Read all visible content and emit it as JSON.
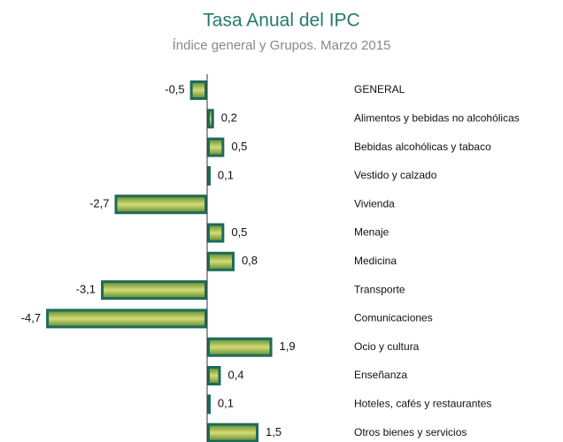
{
  "chart_data": {
    "type": "bar",
    "orientation": "horizontal",
    "title": "Tasa Anual del IPC",
    "subtitle": "Índice general y Grupos.  Marzo  2015",
    "categories": [
      "GENERAL",
      "Alimentos y bebidas no alcohólicas",
      "Bebidas alcohólicas y tabaco",
      "Vestido y calzado",
      "Vivienda",
      "Menaje",
      "Medicina",
      "Transporte",
      "Comunicaciones",
      "Ocio y cultura",
      "Enseñanza",
      "Hoteles, cafés y restaurantes",
      "Otros bienes y servicios"
    ],
    "values": [
      -0.5,
      0.2,
      0.5,
      0.1,
      -2.7,
      0.5,
      0.8,
      -3.1,
      -4.7,
      1.9,
      0.4,
      0.1,
      1.5
    ],
    "value_labels": [
      "-0,5",
      "0,2",
      "0,5",
      "0,1",
      "-2,7",
      "0,5",
      "0,8",
      "-3,1",
      "-4,7",
      "1,9",
      "0,4",
      "0,1",
      "1,5"
    ],
    "color": "#1d6a5d"
  }
}
